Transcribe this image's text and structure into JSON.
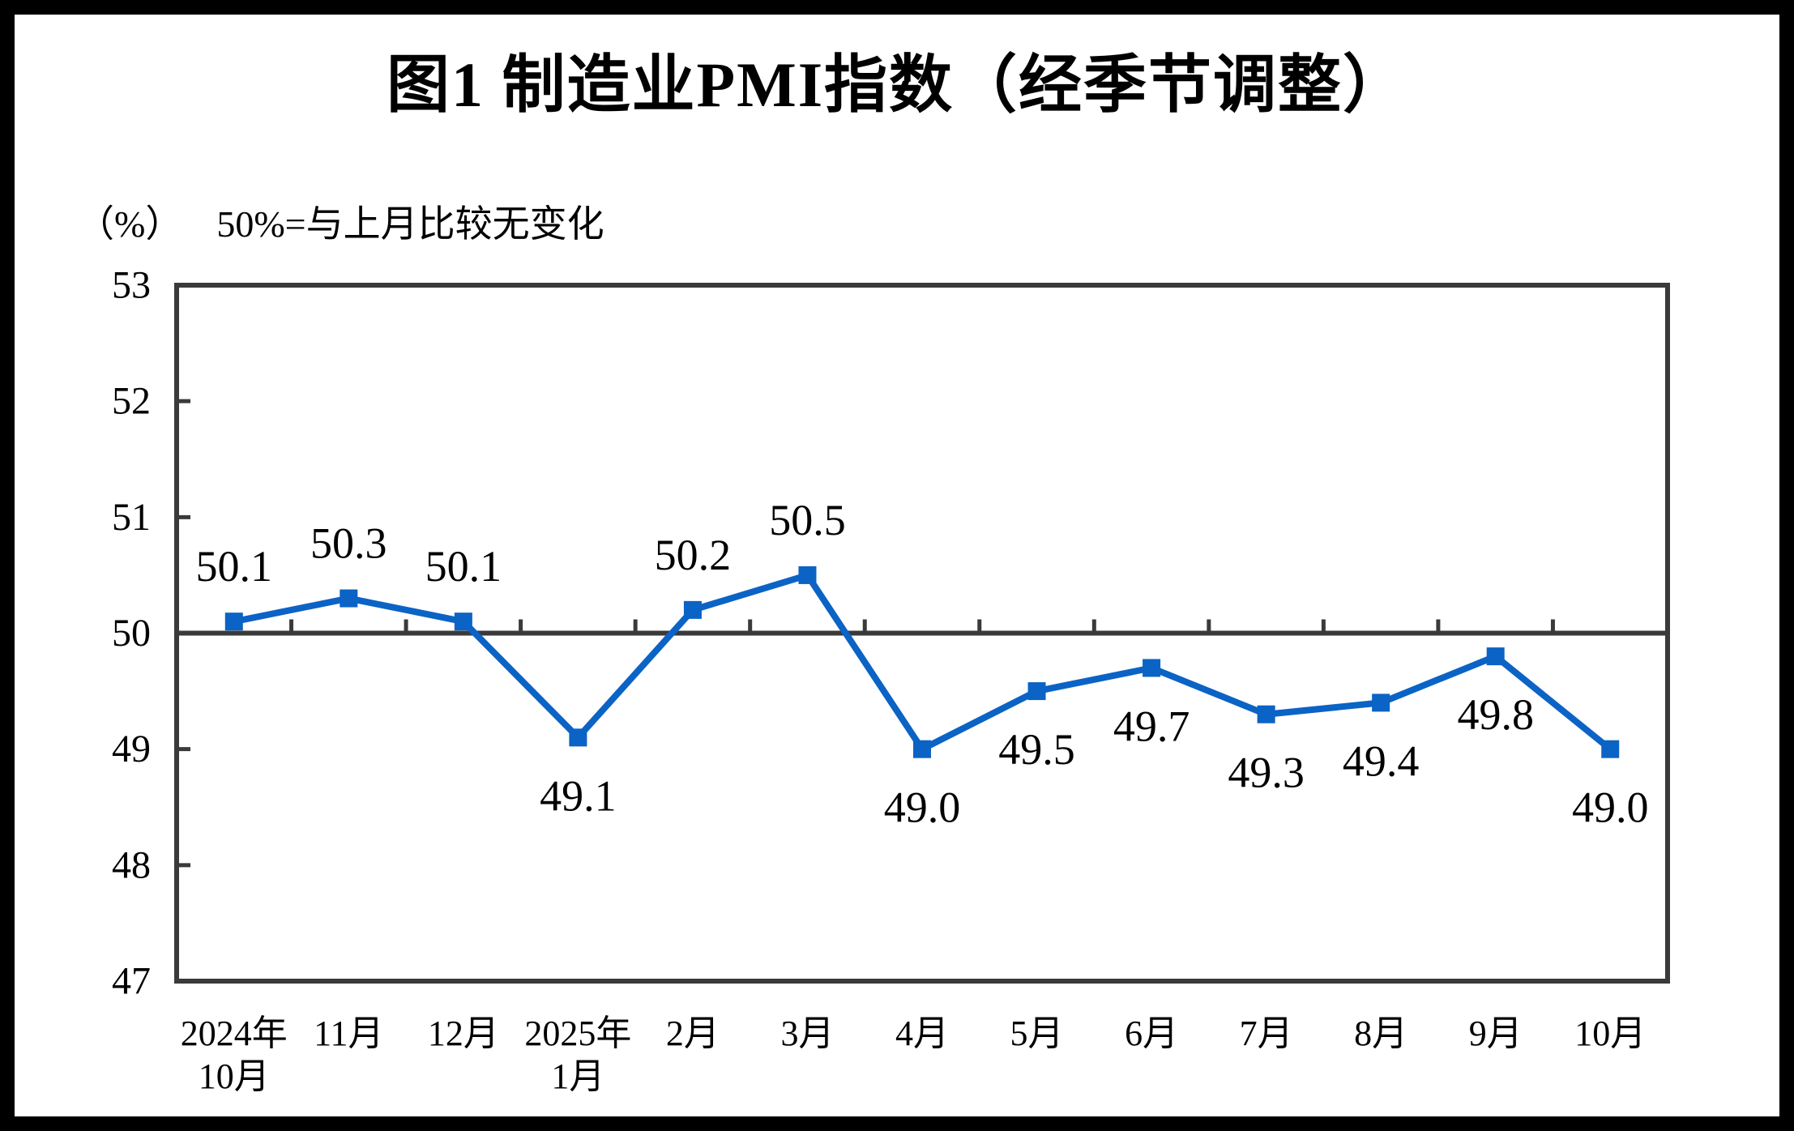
{
  "title": "图1  制造业PMI指数（经季节调整）",
  "subtitle": {
    "unit": "（%）",
    "note": "50%=与上月比较无变化"
  },
  "colors": {
    "series": "#0B63C5",
    "axis": "#3A3A3A",
    "text": "#000000",
    "background": "#FFFFFF",
    "frame": "#000000"
  },
  "chart_data": {
    "type": "line",
    "title": "图1 制造业PMI指数（经季节调整）",
    "unit": "%",
    "reference_note": "50%=与上月比较无变化",
    "categories": [
      "2024年10月",
      "11月",
      "12月",
      "2025年1月",
      "2月",
      "3月",
      "4月",
      "5月",
      "6月",
      "7月",
      "8月",
      "9月",
      "10月"
    ],
    "category_lines": [
      [
        "2024年",
        "10月"
      ],
      [
        "11月"
      ],
      [
        "12月"
      ],
      [
        "2025年",
        "1月"
      ],
      [
        "2月"
      ],
      [
        "3月"
      ],
      [
        "4月"
      ],
      [
        "5月"
      ],
      [
        "6月"
      ],
      [
        "7月"
      ],
      [
        "8月"
      ],
      [
        "9月"
      ],
      [
        "10月"
      ]
    ],
    "values": [
      50.1,
      50.3,
      50.1,
      49.1,
      50.2,
      50.5,
      49.0,
      49.5,
      49.7,
      49.3,
      49.4,
      49.8,
      49.0
    ],
    "value_labels": [
      "50.1",
      "50.3",
      "50.1",
      "49.1",
      "50.2",
      "50.5",
      "49.0",
      "49.5",
      "49.7",
      "49.3",
      "49.4",
      "49.8",
      "49.0"
    ],
    "label_side": [
      "above",
      "above",
      "above",
      "below",
      "above",
      "above",
      "below",
      "below",
      "below",
      "below",
      "below",
      "below",
      "below"
    ],
    "ylim": [
      47,
      53
    ],
    "yticks": [
      47,
      48,
      49,
      50,
      51,
      52,
      53
    ],
    "reference_line": 50,
    "marker": "square",
    "grid": false,
    "legend": "none"
  }
}
